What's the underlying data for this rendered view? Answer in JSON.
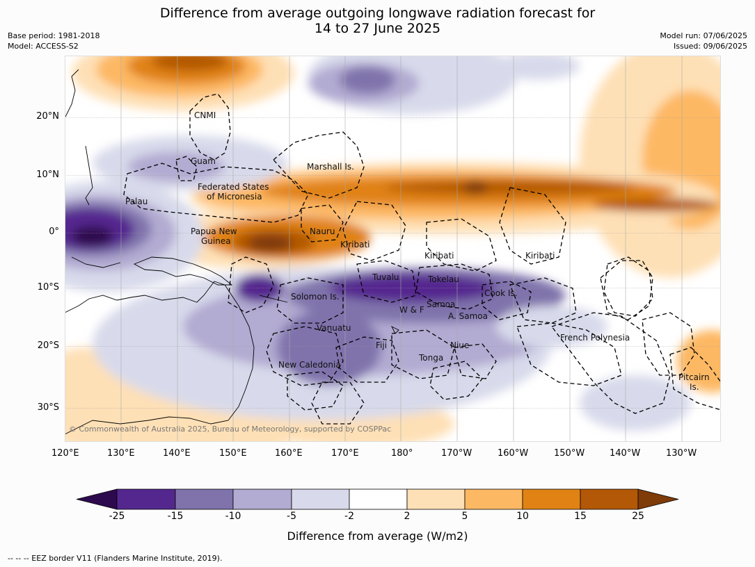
{
  "header": {
    "title_line1": "Difference from average outgoing longwave radiation forecast for",
    "title_line2": "14 to 27 June 2025",
    "base_period": "Base period: 1981-2018",
    "model": "Model: ACCESS-S2",
    "model_run": "Model run: 07/06/2025",
    "issued": "Issued: 09/06/2025"
  },
  "map": {
    "lon_range": [
      120,
      237
    ],
    "lat_range": [
      -36,
      31
    ],
    "lat_ticks": [
      "20°N",
      "10°N",
      "0°",
      "10°S",
      "20°S",
      "30°S"
    ],
    "lon_ticks": [
      "120°E",
      "130°E",
      "140°E",
      "150°E",
      "160°E",
      "170°E",
      "180°",
      "170°W",
      "160°W",
      "150°W",
      "140°W",
      "130°W"
    ],
    "copyright": "© Commonwealth of Australia 2025, Bureau of Meteorology, supported by COSPPac",
    "regions": [
      "CNMI",
      "Guam",
      "Marshall Is.",
      "Federated States",
      "of Micronesia",
      "Palau",
      "Papua New",
      "Guinea",
      "Nauru",
      "Kiribati",
      "Kiribati",
      "Kiribati",
      "Tuvalu",
      "Tokelau",
      "Solomon Is.",
      "Cook Is.",
      "Samoa",
      "W & F",
      "A. Samoa",
      "Vanuatu",
      "Fiji",
      "Niue",
      "French Polynesia",
      "Tonga",
      "New Caledonia",
      "Pitcairn",
      "Is."
    ]
  },
  "colorbar": {
    "ticks": [
      "-25",
      "-15",
      "-10",
      "-5",
      "-2",
      "2",
      "5",
      "10",
      "15",
      "25"
    ],
    "colors": [
      "#2d0a4e",
      "#54278f",
      "#8073ac",
      "#b2abd2",
      "#d8daeb",
      "#ffffff",
      "#fee0b6",
      "#fdb863",
      "#e08214",
      "#b35806",
      "#7f3b08"
    ],
    "label": "Difference from average (W/m2)"
  },
  "footnote": "--  --  -- EEZ border V11 (Flanders Marine Institute, 2019)."
}
